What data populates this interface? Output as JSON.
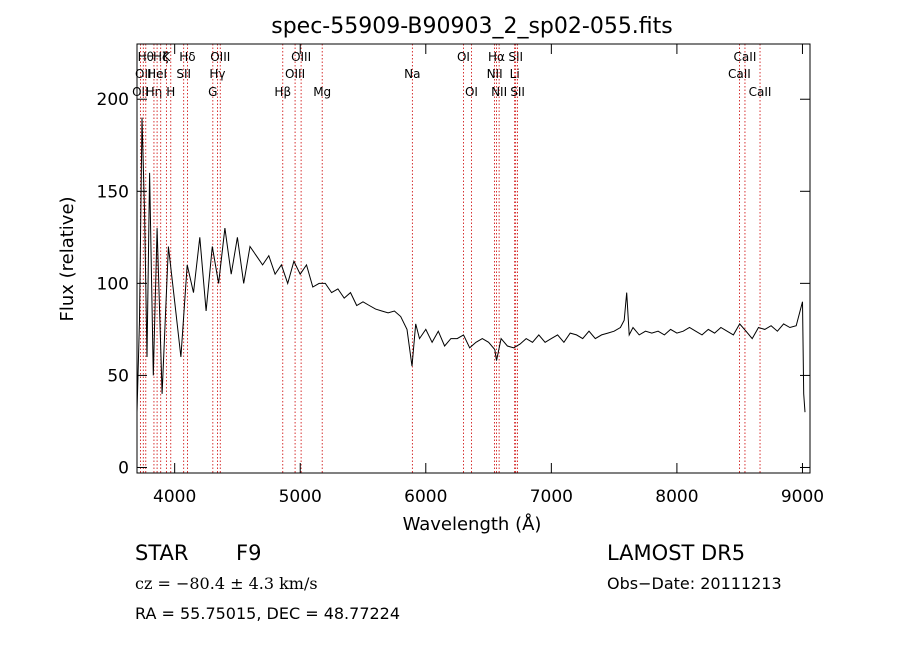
{
  "chart_data": {
    "type": "line",
    "title": "spec-55909-B90903_2_sp02-055.fits",
    "xlabel": "Wavelength (Å)",
    "ylabel": "Flux (relative)",
    "xlim": [
      3700,
      9060
    ],
    "ylim": [
      -3,
      230
    ],
    "xticks": [
      4000,
      5000,
      6000,
      7000,
      8000,
      9000
    ],
    "yticks": [
      0,
      50,
      100,
      150,
      200
    ],
    "series": [
      {
        "x": [
          3700,
          3720,
          3740,
          3760,
          3780,
          3800,
          3830,
          3860,
          3900,
          3950,
          4000,
          4050,
          4100,
          4150,
          4200,
          4250,
          4300,
          4350,
          4400,
          4450,
          4500,
          4550,
          4600,
          4650,
          4700,
          4750,
          4800,
          4850,
          4900,
          4950,
          5000,
          5050,
          5100,
          5150,
          5200,
          5250,
          5300,
          5350,
          5400,
          5450,
          5500,
          5550,
          5600,
          5650,
          5700,
          5750,
          5800,
          5850,
          5890,
          5920,
          5950,
          6000,
          6050,
          6100,
          6150,
          6200,
          6250,
          6300,
          6350,
          6400,
          6450,
          6500,
          6550,
          6563,
          6600,
          6650,
          6700,
          6750,
          6800,
          6850,
          6900,
          6950,
          7000,
          7050,
          7100,
          7150,
          7200,
          7250,
          7300,
          7350,
          7400,
          7450,
          7500,
          7550,
          7580,
          7600,
          7620,
          7650,
          7700,
          7750,
          7800,
          7850,
          7900,
          7950,
          8000,
          8050,
          8100,
          8150,
          8200,
          8250,
          8300,
          8350,
          8400,
          8450,
          8500,
          8550,
          8600,
          8650,
          8700,
          8750,
          8800,
          8850,
          8900,
          8950,
          9000,
          9010,
          9020
        ],
        "values": [
          30,
          80,
          190,
          140,
          60,
          160,
          50,
          130,
          40,
          120,
          90,
          60,
          110,
          95,
          125,
          85,
          120,
          100,
          130,
          105,
          125,
          100,
          120,
          115,
          110,
          115,
          105,
          110,
          100,
          112,
          105,
          110,
          98,
          100,
          100,
          95,
          97,
          92,
          95,
          88,
          90,
          88,
          86,
          85,
          84,
          85,
          82,
          75,
          55,
          78,
          70,
          75,
          68,
          74,
          66,
          70,
          70,
          72,
          65,
          68,
          70,
          68,
          64,
          58,
          70,
          66,
          65,
          67,
          70,
          68,
          72,
          68,
          70,
          72,
          68,
          73,
          72,
          70,
          74,
          70,
          72,
          73,
          74,
          76,
          80,
          95,
          72,
          76,
          72,
          74,
          73,
          74,
          72,
          75,
          73,
          74,
          76,
          74,
          72,
          75,
          73,
          76,
          74,
          72,
          78,
          74,
          70,
          76,
          75,
          77,
          74,
          78,
          76,
          77,
          90,
          40,
          30
        ]
      }
    ],
    "lines": [
      {
        "x": 3727,
        "label": "OII",
        "row": 3
      },
      {
        "x": 3750,
        "label": "OII",
        "row": 2
      },
      {
        "x": 3770,
        "label": "Hθ",
        "row": 1
      },
      {
        "x": 3835,
        "label": "Hη",
        "row": 3
      },
      {
        "x": 3860,
        "label": "HeI",
        "row": 2
      },
      {
        "x": 3889,
        "label": "Hζ",
        "row": 1
      },
      {
        "x": 3934,
        "label": "K",
        "row": 1
      },
      {
        "x": 3969,
        "label": "H",
        "row": 3
      },
      {
        "x": 4072,
        "label": "SII",
        "row": 2
      },
      {
        "x": 4102,
        "label": "Hδ",
        "row": 1
      },
      {
        "x": 4304,
        "label": "G",
        "row": 3
      },
      {
        "x": 4341,
        "label": "Hγ",
        "row": 2
      },
      {
        "x": 4363,
        "label": "OIII",
        "row": 1
      },
      {
        "x": 4861,
        "label": "Hβ",
        "row": 3
      },
      {
        "x": 4959,
        "label": "OIII",
        "row": 2
      },
      {
        "x": 5007,
        "label": "OIII",
        "row": 1
      },
      {
        "x": 5175,
        "label": "Mg",
        "row": 3
      },
      {
        "x": 5893,
        "label": "Na",
        "row": 2
      },
      {
        "x": 6300,
        "label": "OI",
        "row": 1
      },
      {
        "x": 6364,
        "label": "OI",
        "row": 3
      },
      {
        "x": 6548,
        "label": "NII",
        "row": 2
      },
      {
        "x": 6563,
        "label": "Hα",
        "row": 1
      },
      {
        "x": 6584,
        "label": "NII",
        "row": 3
      },
      {
        "x": 6708,
        "label": "Li",
        "row": 2
      },
      {
        "x": 6716,
        "label": "SII",
        "row": 1
      },
      {
        "x": 6731,
        "label": "SII",
        "row": 3
      },
      {
        "x": 8498,
        "label": "CaII",
        "row": 2
      },
      {
        "x": 8542,
        "label": "CaII",
        "row": 1
      },
      {
        "x": 8662,
        "label": "CaII",
        "row": 3
      }
    ],
    "line_color": "#cc0000",
    "grid": false,
    "legend": "none"
  },
  "info": {
    "object_class": "STAR",
    "subclass": "F9",
    "survey": "LAMOST  DR5",
    "cz": "cz = −80.4 ± 4.3 km/s",
    "obs_date": "Obs−Date: 20111213",
    "coords": "RA =  55.75015, DEC =  48.77224"
  }
}
